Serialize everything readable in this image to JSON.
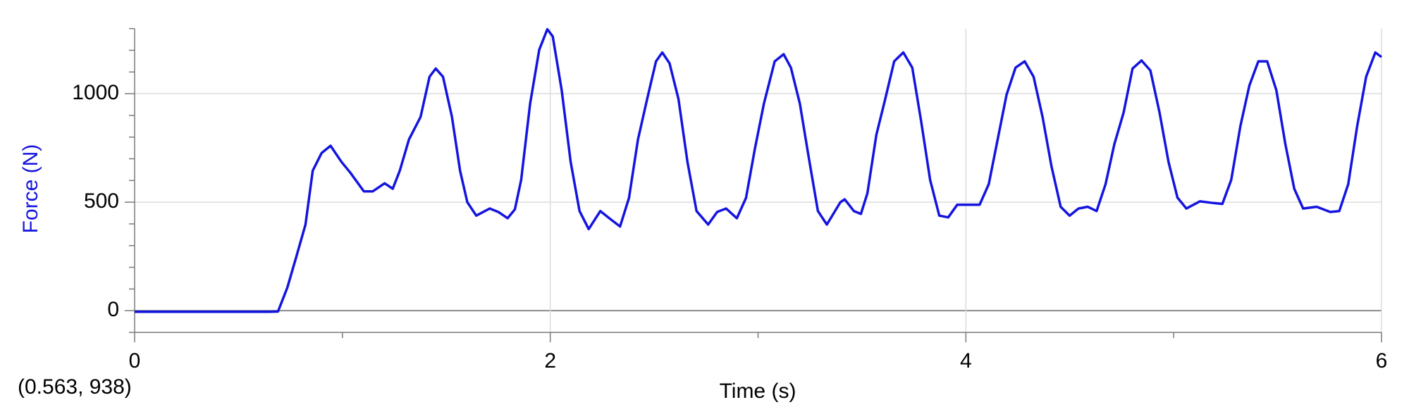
{
  "chart_data": {
    "type": "line",
    "xlabel": "Time (s)",
    "ylabel": "Force (N)",
    "annotation": "(0.563, 938)",
    "x": [
      0,
      0.65,
      0.69,
      0.735,
      0.779,
      0.822,
      0.857,
      0.9,
      0.943,
      0.995,
      1.038,
      1.103,
      1.146,
      1.203,
      1.242,
      1.276,
      1.32,
      1.376,
      1.419,
      1.449,
      1.484,
      1.527,
      1.566,
      1.601,
      1.644,
      1.709,
      1.752,
      1.795,
      1.83,
      1.86,
      1.903,
      1.947,
      1.986,
      2.012,
      2.055,
      2.098,
      2.141,
      2.185,
      2.241,
      2.284,
      2.336,
      2.379,
      2.422,
      2.466,
      2.509,
      2.539,
      2.574,
      2.617,
      2.66,
      2.704,
      2.76,
      2.803,
      2.846,
      2.898,
      2.942,
      2.985,
      3.028,
      3.08,
      3.123,
      3.158,
      3.201,
      3.244,
      3.288,
      3.331,
      3.396,
      3.417,
      3.461,
      3.495,
      3.526,
      3.569,
      3.612,
      3.655,
      3.699,
      3.742,
      3.785,
      3.828,
      3.872,
      3.915,
      3.958,
      4.023,
      4.066,
      4.11,
      4.153,
      4.196,
      4.239,
      4.283,
      4.326,
      4.369,
      4.412,
      4.456,
      4.499,
      4.542,
      4.586,
      4.629,
      4.672,
      4.715,
      4.759,
      4.802,
      4.845,
      4.888,
      4.932,
      4.975,
      5.018,
      5.061,
      5.126,
      5.191,
      5.234,
      5.277,
      5.321,
      5.364,
      5.407,
      5.45,
      5.494,
      5.537,
      5.58,
      5.623,
      5.688,
      5.753,
      5.797,
      5.84,
      5.883,
      5.926,
      5.97,
      6.0
    ],
    "series": [
      {
        "name": "Force",
        "color": "#1414e0",
        "values": [
          -5,
          -5,
          -4,
          107,
          252,
          397,
          645,
          727,
          760,
          686,
          636,
          550,
          550,
          587,
          562,
          645,
          789,
          893,
          1078,
          1116,
          1078,
          893,
          645,
          500,
          438,
          471,
          454,
          426,
          467,
          603,
          954,
          1202,
          1297,
          1264,
          1016,
          686,
          459,
          376,
          459,
          426,
          388,
          520,
          789,
          975,
          1149,
          1190,
          1140,
          975,
          686,
          459,
          397,
          455,
          471,
          426,
          520,
          748,
          954,
          1149,
          1182,
          1120,
          954,
          706,
          459,
          397,
          500,
          513,
          459,
          446,
          541,
          810,
          975,
          1149,
          1190,
          1120,
          872,
          603,
          438,
          430,
          488,
          488,
          488,
          583,
          789,
          996,
          1120,
          1149,
          1078,
          893,
          665,
          479,
          438,
          471,
          479,
          459,
          583,
          769,
          913,
          1116,
          1153,
          1107,
          913,
          686,
          521,
          471,
          504,
          496,
          492,
          603,
          851,
          1037,
          1149,
          1149,
          1016,
          769,
          562,
          471,
          479,
          455,
          459,
          583,
          851,
          1078,
          1190,
          1169
        ]
      }
    ],
    "xlim": [
      0,
      6
    ],
    "ylim": [
      -100,
      1300
    ],
    "xticks": [
      0,
      2,
      4,
      6
    ],
    "yticks": [
      0,
      500,
      1000
    ],
    "xminorticks": [
      1,
      3,
      5
    ],
    "yminorticks": [
      -100,
      100,
      200,
      300,
      400,
      600,
      700,
      800,
      900,
      1100,
      1200,
      1300
    ],
    "grid": true,
    "ylabel_color": "#1414e0"
  }
}
